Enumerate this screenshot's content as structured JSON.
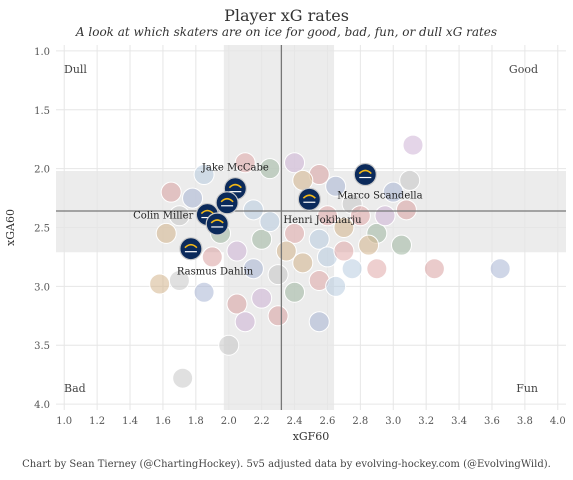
{
  "chart_data": {
    "type": "scatter",
    "title": "Player xG rates",
    "subtitle": "A look at which skaters are on ice for good, bad, fun, or dull xG rates",
    "xlabel": "xGF60",
    "ylabel": "xGA60",
    "xlim": [
      0.95,
      4.05
    ],
    "ylim": [
      0.95,
      4.05
    ],
    "y_reversed": true,
    "x_ticks": [
      "1.0",
      "1.2",
      "1.4",
      "1.6",
      "1.8",
      "2.0",
      "2.2",
      "2.4",
      "2.6",
      "2.8",
      "3.0",
      "3.2",
      "3.4",
      "3.6",
      "3.8",
      "4.0"
    ],
    "y_ticks": [
      "1.0",
      "1.5",
      "2.0",
      "2.5",
      "3.0",
      "3.5",
      "4.0"
    ],
    "grid": true,
    "reference_lines": {
      "x": 2.32,
      "y": 2.36
    },
    "bands": {
      "x": [
        1.97,
        2.64
      ],
      "y": [
        2.02,
        2.71
      ]
    },
    "quadrant_labels": {
      "top_left": "Dull",
      "top_right": "Good",
      "bottom_left": "Bad",
      "bottom_right": "Fun"
    },
    "highlighted_team_color": "#0b2a5b",
    "highlighted_team_accent": "#f2b817",
    "players": [
      {
        "name": "Jake McCabe",
        "x": 2.04,
        "y": 2.17
      },
      {
        "name": "",
        "x": 1.99,
        "y": 2.29
      },
      {
        "name": "Marco Scandella",
        "x": 2.83,
        "y": 2.05
      },
      {
        "name": "Henri Jokiharju",
        "x": 2.49,
        "y": 2.26
      },
      {
        "name": "Colin Miller",
        "x": 1.87,
        "y": 2.39
      },
      {
        "name": "",
        "x": 1.93,
        "y": 2.47
      },
      {
        "name": "Rasmus Dahlin",
        "x": 1.77,
        "y": 2.68
      }
    ],
    "background_points": [
      {
        "x": 1.65,
        "y": 2.2
      },
      {
        "x": 1.78,
        "y": 2.25
      },
      {
        "x": 1.7,
        "y": 2.4
      },
      {
        "x": 1.62,
        "y": 2.55
      },
      {
        "x": 1.85,
        "y": 2.05
      },
      {
        "x": 2.1,
        "y": 1.95
      },
      {
        "x": 2.25,
        "y": 2.0
      },
      {
        "x": 2.4,
        "y": 1.95
      },
      {
        "x": 2.55,
        "y": 2.05
      },
      {
        "x": 2.65,
        "y": 2.15
      },
      {
        "x": 2.75,
        "y": 2.3
      },
      {
        "x": 2.7,
        "y": 2.5
      },
      {
        "x": 2.55,
        "y": 2.6
      },
      {
        "x": 2.4,
        "y": 2.55
      },
      {
        "x": 2.2,
        "y": 2.6
      },
      {
        "x": 2.05,
        "y": 2.7
      },
      {
        "x": 1.9,
        "y": 2.75
      },
      {
        "x": 2.15,
        "y": 2.85
      },
      {
        "x": 2.3,
        "y": 2.9
      },
      {
        "x": 2.45,
        "y": 2.8
      },
      {
        "x": 2.6,
        "y": 2.75
      },
      {
        "x": 2.8,
        "y": 2.4
      },
      {
        "x": 2.9,
        "y": 2.55
      },
      {
        "x": 2.95,
        "y": 2.4
      },
      {
        "x": 3.08,
        "y": 2.35
      },
      {
        "x": 3.0,
        "y": 2.2
      },
      {
        "x": 3.1,
        "y": 2.1
      },
      {
        "x": 2.85,
        "y": 2.65
      },
      {
        "x": 2.75,
        "y": 2.85
      },
      {
        "x": 2.55,
        "y": 2.95
      },
      {
        "x": 2.4,
        "y": 3.05
      },
      {
        "x": 2.2,
        "y": 3.1
      },
      {
        "x": 2.05,
        "y": 3.15
      },
      {
        "x": 1.85,
        "y": 3.05
      },
      {
        "x": 1.7,
        "y": 2.95
      },
      {
        "x": 1.58,
        "y": 2.98
      },
      {
        "x": 2.65,
        "y": 3.0
      },
      {
        "x": 2.9,
        "y": 2.85
      },
      {
        "x": 3.05,
        "y": 2.65
      },
      {
        "x": 2.1,
        "y": 3.3
      },
      {
        "x": 2.3,
        "y": 3.25
      },
      {
        "x": 2.55,
        "y": 3.3
      },
      {
        "x": 2.0,
        "y": 3.5
      },
      {
        "x": 2.45,
        "y": 2.1
      },
      {
        "x": 2.15,
        "y": 2.35
      },
      {
        "x": 2.6,
        "y": 2.4
      },
      {
        "x": 1.95,
        "y": 2.55
      },
      {
        "x": 3.12,
        "y": 1.8
      },
      {
        "x": 3.25,
        "y": 2.85
      },
      {
        "x": 3.65,
        "y": 2.85
      },
      {
        "x": 1.72,
        "y": 3.78
      },
      {
        "x": 2.35,
        "y": 2.7
      },
      {
        "x": 2.25,
        "y": 2.45
      },
      {
        "x": 2.7,
        "y": 2.7
      }
    ]
  },
  "caption": "Chart by Sean Tierney (@ChartingHockey). 5v5 adjusted data by evolving-hockey.com (@EvolvingWild)."
}
